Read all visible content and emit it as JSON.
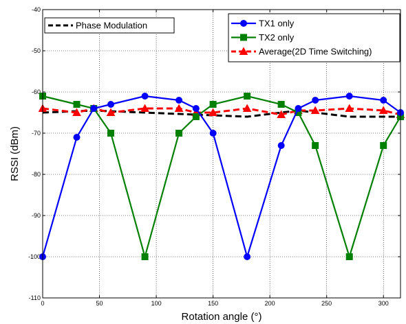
{
  "chart_data": {
    "type": "line",
    "title": "",
    "xlabel": "Rotation angle (°)",
    "ylabel": "RSSI (dBm)",
    "xlim": [
      0,
      315
    ],
    "ylim": [
      -110,
      -40
    ],
    "xticks": [
      0,
      50,
      100,
      150,
      200,
      250,
      300
    ],
    "yticks": [
      -110,
      -100,
      -90,
      -80,
      -70,
      -60,
      -50,
      -40
    ],
    "grid": true,
    "series": [
      {
        "name": "TX1 only",
        "color": "#0000ff",
        "marker": "circle",
        "line_style": "solid",
        "x": [
          0,
          30,
          45,
          60,
          90,
          120,
          135,
          150,
          180,
          210,
          225,
          240,
          270,
          300,
          315
        ],
        "y": [
          -100,
          -71,
          -64,
          -63,
          -61,
          -62,
          -64,
          -70,
          -100,
          -73,
          -64,
          -62,
          -61,
          -62,
          -65
        ]
      },
      {
        "name": "TX2 only",
        "color": "#008000",
        "marker": "square",
        "line_style": "solid",
        "x": [
          0,
          30,
          45,
          60,
          90,
          120,
          135,
          150,
          180,
          210,
          225,
          240,
          270,
          300,
          315
        ],
        "y": [
          -61,
          -63,
          -64,
          -70,
          -100,
          -70,
          -66,
          -63,
          -61,
          -63,
          -65,
          -73,
          -100,
          -73,
          -66
        ]
      },
      {
        "name": "Average(2D Time Switching)",
        "color": "#ff0000",
        "marker": "triangle",
        "line_style": "dashed",
        "x": [
          0,
          30,
          45,
          60,
          90,
          120,
          135,
          150,
          180,
          210,
          225,
          240,
          270,
          300,
          315
        ],
        "y": [
          -64,
          -65,
          -64,
          -65,
          -64,
          -64,
          -65,
          -65,
          -64,
          -65.5,
          -64.5,
          -64.5,
          -64,
          -64.5,
          -65.5
        ]
      },
      {
        "name": "Phase Modulation",
        "color": "#000000",
        "marker": "none",
        "line_style": "dashed",
        "x": [
          0,
          45,
          90,
          135,
          180,
          225,
          270,
          315
        ],
        "y": [
          -65,
          -64.5,
          -65,
          -65.5,
          -66,
          -64.5,
          -66,
          -66
        ]
      }
    ],
    "legends": [
      {
        "placement": "top-left",
        "entries": [
          "Phase Modulation"
        ]
      },
      {
        "placement": "top-right",
        "entries": [
          "TX1 only",
          "TX2 only",
          "Average(2D Time Switching)"
        ]
      }
    ]
  }
}
